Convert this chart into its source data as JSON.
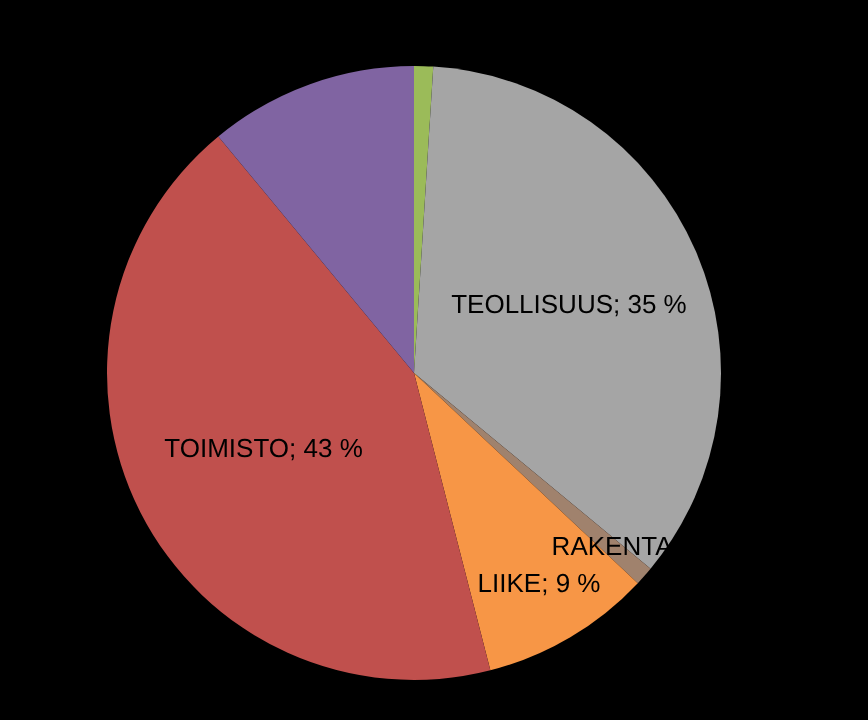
{
  "chart_data": {
    "type": "pie",
    "categories": [
      null,
      "TEOLLISUUS",
      "RAKENTA",
      "LIIKE",
      "TOIMISTO",
      null
    ],
    "values": [
      1,
      35,
      1,
      9,
      43,
      11
    ],
    "value_labels": [
      null,
      "35 %",
      null,
      "9 %",
      "43 %",
      null
    ],
    "colors": [
      "#9bbb59",
      "#a5a5a5",
      "#a0826d",
      "#f79646",
      "#c0504d",
      "#8064a2"
    ],
    "legend": false
  }
}
